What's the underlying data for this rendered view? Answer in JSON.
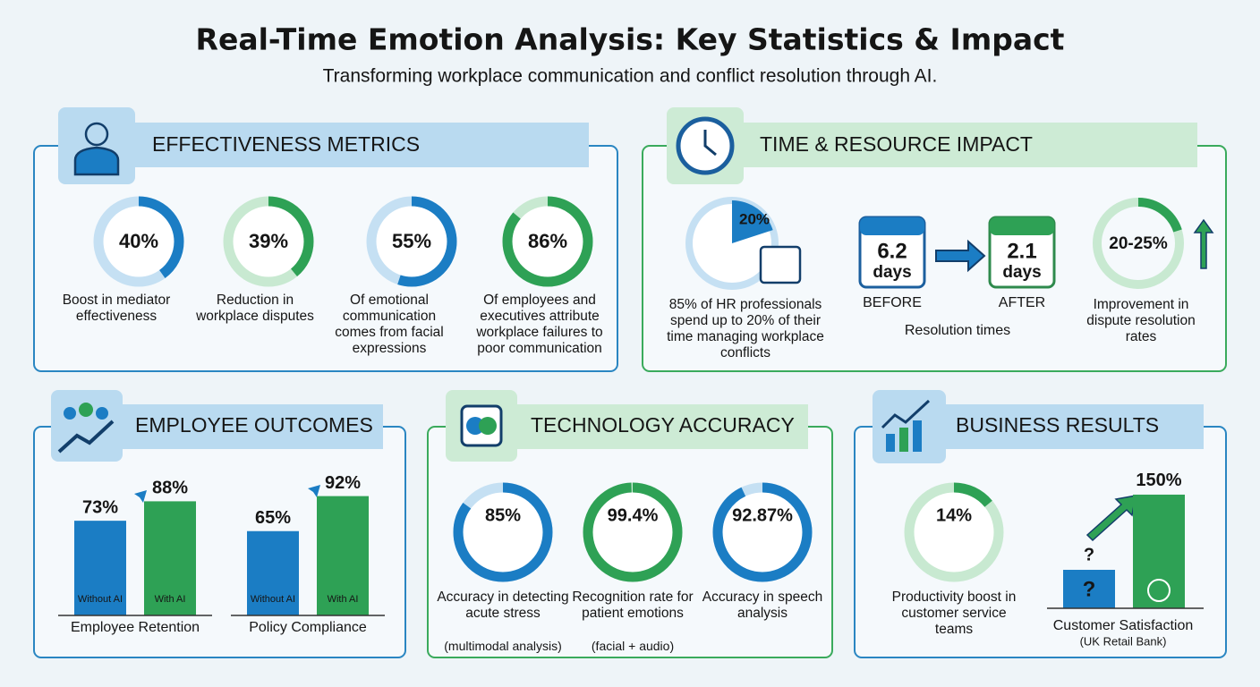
{
  "header": {
    "title": "Real-Time Emotion Analysis: Key Statistics & Impact",
    "subtitle": "Transforming workplace communication and conflict resolution through AI."
  },
  "effectiveness": {
    "title": "EFFECTIVENESS METRICS",
    "stats": [
      {
        "value": 40,
        "label": "40%",
        "text": "Boost in mediator effectiveness"
      },
      {
        "value": 39,
        "label": "39%",
        "text": "Reduction in workplace disputes"
      },
      {
        "value": 55,
        "label": "55%",
        "text": "Of emotional communication comes from facial expressions"
      },
      {
        "value": 86,
        "label": "86%",
        "text": "Of employees and executives attribute workplace failures to poor communication"
      }
    ]
  },
  "time": {
    "title": "TIME & RESOURCE IMPACT",
    "hr_stat": {
      "value": 20,
      "label": "20%",
      "text": "85% of HR professionals spend up to 20% of their time managing workplace conflicts"
    },
    "resolution": {
      "before": {
        "value": "6.2",
        "unit": "days",
        "label": "BEFORE"
      },
      "after": {
        "value": "2.1",
        "unit": "days",
        "label": "AFTER"
      },
      "text": "Resolution times"
    },
    "improvement": {
      "label": "20-25%",
      "text": "Improvement in dispute resolution rates"
    }
  },
  "employee": {
    "title": "EMPLOYEE OUTCOMES",
    "charts": [
      {
        "name": "Employee Retention",
        "bars": [
          {
            "name": "Without AI",
            "value": 73,
            "label": "73%"
          },
          {
            "name": "With AI",
            "value": 88,
            "label": "88%"
          }
        ]
      },
      {
        "name": "Policy Compliance",
        "bars": [
          {
            "name": "Without AI",
            "value": 65,
            "label": "65%"
          },
          {
            "name": "With AI",
            "value": 92,
            "label": "92%"
          }
        ]
      }
    ]
  },
  "technology": {
    "title": "TECHNOLOGY ACCURACY",
    "stats": [
      {
        "value": 85,
        "label": "85%",
        "text": "Accuracy in detecting acute stress",
        "note": "(multimodal analysis)"
      },
      {
        "value": 99.4,
        "label": "99.4%",
        "text": "Recognition rate for patient emotions",
        "note": "(facial + audio)"
      },
      {
        "value": 92.87,
        "label": "92.87%",
        "text": "Accuracy in speech analysis"
      }
    ]
  },
  "business": {
    "title": "BUSINESS RESULTS",
    "productivity": {
      "value": 14,
      "label": "14%",
      "text": "Productivity boost in customer service teams"
    },
    "satisfaction": {
      "name": "Customer Satisfaction",
      "note": "(UK Retail Bank)",
      "before": "?",
      "after": {
        "value": 150,
        "label": "150%"
      }
    }
  }
}
